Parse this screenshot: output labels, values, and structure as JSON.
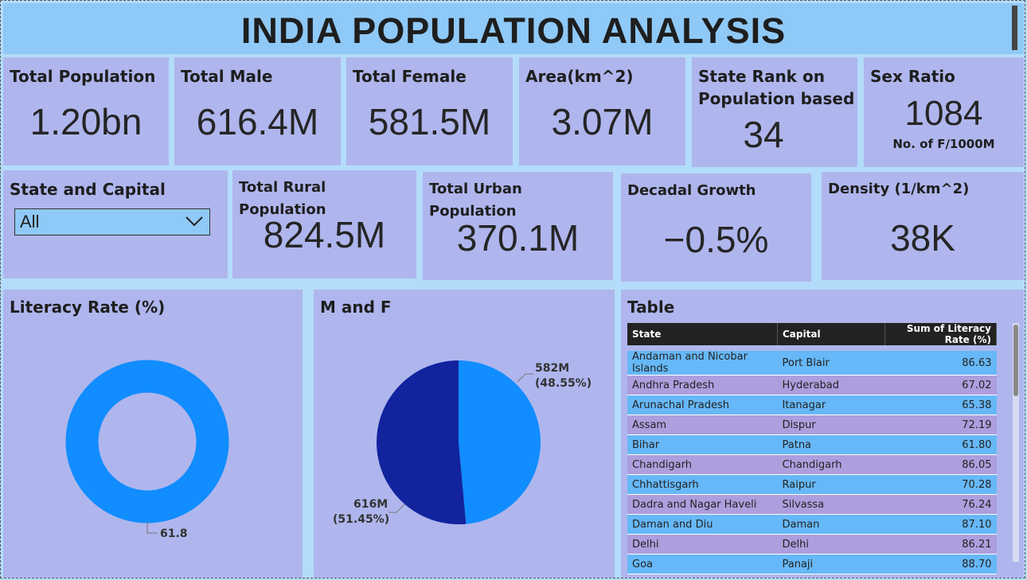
{
  "header": {
    "title": "INDIA POPULATION ANALYSIS"
  },
  "kpis": {
    "total_population": {
      "label": "Total Population",
      "value": "1.20bn"
    },
    "total_male": {
      "label": "Total Male",
      "value": "616.4M"
    },
    "total_female": {
      "label": "Total Female",
      "value": "581.5M"
    },
    "area": {
      "label": "Area(km^2)",
      "value": "3.07M"
    },
    "state_rank": {
      "label_line1": "State Rank on",
      "label_line2": "Population based",
      "value": "34"
    },
    "sex_ratio": {
      "label": "Sex Ratio",
      "value": "1084",
      "note": "No. of F/1000M"
    },
    "rural": {
      "label": "Total Rural Population",
      "value": "824.5M"
    },
    "urban": {
      "label": "Total Urban Population",
      "value": "370.1M"
    },
    "decadal": {
      "label": "Decadal Growth",
      "value": "−0.5%"
    },
    "density": {
      "label": "Density (1/km^2)",
      "value": "38K"
    }
  },
  "filter": {
    "label": "State and Capital",
    "selected": "All"
  },
  "literacy_chart": {
    "title": "Literacy Rate (%)",
    "value_label": "61.8",
    "color": "#118dff"
  },
  "mf_chart": {
    "title": "M and F",
    "female": {
      "value": "582M",
      "pct": "(48.55%)",
      "share": 48.55,
      "color": "#118dff"
    },
    "male": {
      "value": "616M",
      "pct": "(51.45%)",
      "share": 51.45,
      "color": "#12239e"
    }
  },
  "table": {
    "title": "Table",
    "columns": [
      "State",
      "Capital",
      "Sum of Literacy Rate (%)"
    ],
    "rows": [
      [
        "Andaman and Nicobar Islands",
        "Port Blair",
        "86.63"
      ],
      [
        "Andhra Pradesh",
        "Hyderabad",
        "67.02"
      ],
      [
        "Arunachal Pradesh",
        "Itanagar",
        "65.38"
      ],
      [
        "Assam",
        "Dispur",
        "72.19"
      ],
      [
        "Bihar",
        "Patna",
        "61.80"
      ],
      [
        "Chandigarh",
        "Chandigarh",
        "86.05"
      ],
      [
        "Chhattisgarh",
        "Raipur",
        "70.28"
      ],
      [
        "Dadra and Nagar Haveli",
        "Silvassa",
        "76.24"
      ],
      [
        "Daman and Diu",
        "Daman",
        "87.10"
      ],
      [
        "Delhi",
        "Delhi",
        "86.21"
      ],
      [
        "Goa",
        "Panaji",
        "88.70"
      ]
    ]
  },
  "colors": {
    "card": "#afb6ed",
    "header": "#8fc9f7",
    "background": "#b3dcfa"
  }
}
